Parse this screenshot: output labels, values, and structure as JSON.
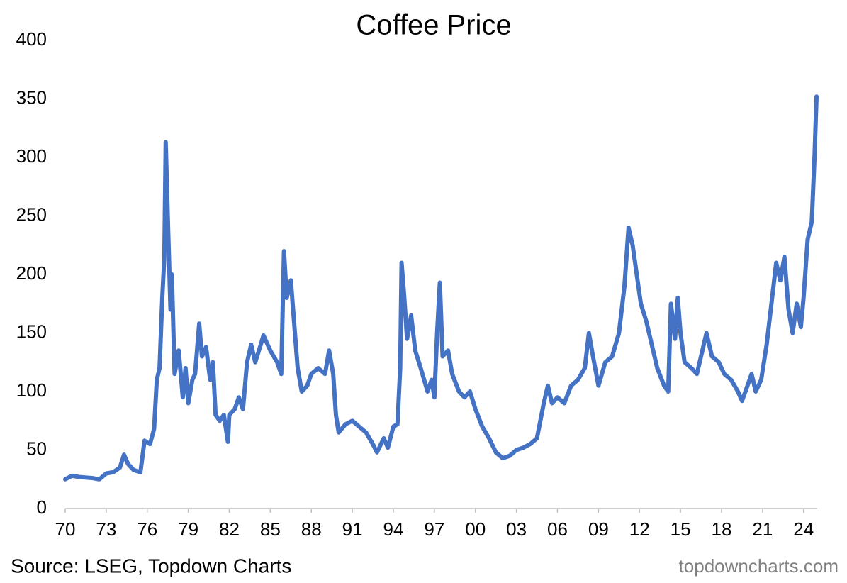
{
  "chart_data": {
    "type": "line",
    "title": "Coffee Price",
    "source": "Source: LSEG, Topdown Charts",
    "watermark": "topdowncharts.com",
    "x": [
      1970.0,
      1970.5,
      1971.0,
      1972.0,
      1972.5,
      1973.0,
      1973.5,
      1974.0,
      1974.3,
      1974.6,
      1975.0,
      1975.5,
      1975.8,
      1976.2,
      1976.5,
      1976.7,
      1976.9,
      1977.1,
      1977.25,
      1977.35,
      1977.5,
      1977.7,
      1977.8,
      1978.0,
      1978.3,
      1978.6,
      1978.8,
      1979.0,
      1979.3,
      1979.5,
      1979.8,
      1980.0,
      1980.3,
      1980.6,
      1980.8,
      1981.0,
      1981.3,
      1981.6,
      1981.9,
      1982.0,
      1982.4,
      1982.7,
      1983.0,
      1983.3,
      1983.6,
      1983.9,
      1984.3,
      1984.5,
      1985.0,
      1985.5,
      1985.8,
      1986.0,
      1986.2,
      1986.5,
      1986.8,
      1987.0,
      1987.3,
      1987.7,
      1988.0,
      1988.5,
      1989.0,
      1989.3,
      1989.6,
      1989.8,
      1990.0,
      1990.5,
      1991.0,
      1991.5,
      1992.0,
      1992.5,
      1992.8,
      1993.3,
      1993.6,
      1994.0,
      1994.3,
      1994.5,
      1994.6,
      1994.8,
      1995.0,
      1995.3,
      1995.6,
      1996.0,
      1996.5,
      1996.8,
      1997.0,
      1997.2,
      1997.4,
      1997.6,
      1998.0,
      1998.3,
      1998.8,
      1999.2,
      1999.6,
      2000.0,
      2000.5,
      2001.0,
      2001.5,
      2002.0,
      2002.5,
      2003.0,
      2003.5,
      2004.0,
      2004.5,
      2005.0,
      2005.3,
      2005.6,
      2006.0,
      2006.5,
      2007.0,
      2007.5,
      2008.0,
      2008.3,
      2008.6,
      2009.0,
      2009.5,
      2010.0,
      2010.5,
      2010.9,
      2011.2,
      2011.5,
      2011.8,
      2012.1,
      2012.5,
      2012.9,
      2013.3,
      2013.8,
      2014.1,
      2014.3,
      2014.6,
      2014.8,
      2015.0,
      2015.3,
      2015.8,
      2016.2,
      2016.6,
      2016.9,
      2017.3,
      2017.8,
      2018.2,
      2018.7,
      2019.2,
      2019.5,
      2019.9,
      2020.2,
      2020.5,
      2020.9,
      2021.3,
      2021.6,
      2022.0,
      2022.3,
      2022.6,
      2022.9,
      2023.2,
      2023.5,
      2023.8,
      2024.0,
      2024.3,
      2024.6,
      2024.8,
      2024.95
    ],
    "series": [
      {
        "color": "#4472c4",
        "values": [
          25,
          28,
          27,
          26,
          25,
          30,
          31,
          35,
          46,
          38,
          33,
          31,
          58,
          55,
          68,
          110,
          120,
          180,
          215,
          313,
          250,
          170,
          200,
          115,
          135,
          95,
          120,
          90,
          110,
          115,
          158,
          130,
          138,
          110,
          125,
          80,
          75,
          80,
          57,
          80,
          85,
          95,
          85,
          125,
          140,
          125,
          140,
          148,
          135,
          125,
          115,
          220,
          180,
          195,
          150,
          120,
          100,
          105,
          115,
          120,
          115,
          135,
          115,
          80,
          65,
          72,
          75,
          70,
          65,
          55,
          48,
          60,
          52,
          70,
          72,
          120,
          210,
          180,
          145,
          165,
          135,
          120,
          100,
          110,
          95,
          150,
          193,
          130,
          135,
          115,
          100,
          95,
          100,
          85,
          70,
          60,
          48,
          43,
          45,
          50,
          52,
          55,
          60,
          90,
          105,
          90,
          95,
          90,
          105,
          110,
          120,
          150,
          130,
          105,
          125,
          130,
          150,
          190,
          240,
          225,
          200,
          175,
          160,
          140,
          120,
          105,
          100,
          175,
          145,
          180,
          150,
          125,
          120,
          115,
          135,
          150,
          130,
          125,
          115,
          110,
          100,
          92,
          105,
          115,
          100,
          110,
          140,
          170,
          210,
          195,
          215,
          170,
          150,
          175,
          155,
          180,
          230,
          245,
          300,
          352
        ]
      }
    ],
    "xlim": [
      1970,
      2025
    ],
    "xticks": [
      {
        "value": 1970,
        "label": "70"
      },
      {
        "value": 1973,
        "label": "73"
      },
      {
        "value": 1976,
        "label": "76"
      },
      {
        "value": 1979,
        "label": "79"
      },
      {
        "value": 1982,
        "label": "82"
      },
      {
        "value": 1985,
        "label": "85"
      },
      {
        "value": 1988,
        "label": "88"
      },
      {
        "value": 1991,
        "label": "91"
      },
      {
        "value": 1994,
        "label": "94"
      },
      {
        "value": 1997,
        "label": "97"
      },
      {
        "value": 2000,
        "label": "00"
      },
      {
        "value": 2003,
        "label": "03"
      },
      {
        "value": 2006,
        "label": "06"
      },
      {
        "value": 2009,
        "label": "09"
      },
      {
        "value": 2012,
        "label": "12"
      },
      {
        "value": 2015,
        "label": "15"
      },
      {
        "value": 2018,
        "label": "18"
      },
      {
        "value": 2021,
        "label": "21"
      },
      {
        "value": 2024,
        "label": "24"
      }
    ],
    "ylim": [
      0,
      400
    ],
    "yticks": [
      0,
      50,
      100,
      150,
      200,
      250,
      300,
      350,
      400
    ],
    "grid": false
  }
}
